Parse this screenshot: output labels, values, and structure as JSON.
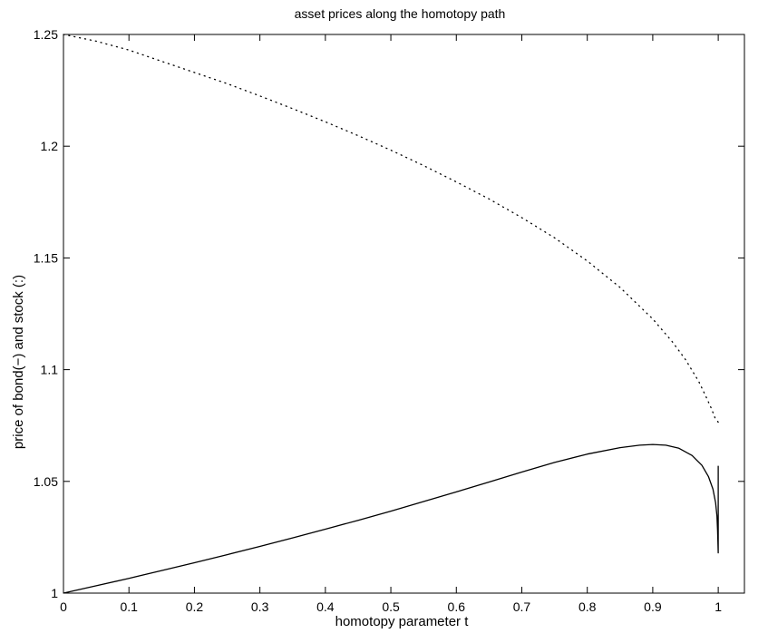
{
  "chart_data": {
    "type": "line",
    "title": "asset prices along the homotopy path",
    "xlabel": "homotopy parameter t",
    "ylabel": "price of bond(−) and stock (:)",
    "xlim": [
      0,
      1.04
    ],
    "ylim": [
      1,
      1.25
    ],
    "xticks": [
      0,
      0.1,
      0.2,
      0.3,
      0.4,
      0.5,
      0.6,
      0.7,
      0.8,
      0.9,
      1
    ],
    "xtick_labels": [
      "0",
      "0.1",
      "0.2",
      "0.3",
      "0.4",
      "0.5",
      "0.6",
      "0.7",
      "0.8",
      "0.9",
      "1"
    ],
    "yticks": [
      1,
      1.05,
      1.1,
      1.15,
      1.2,
      1.25
    ],
    "ytick_labels": [
      "1",
      "1.05",
      "1.1",
      "1.15",
      "1.2",
      "1.25"
    ],
    "grid": false,
    "series": [
      {
        "style": "solid",
        "color": "#000000",
        "x": [
          0,
          0.05,
          0.1,
          0.15,
          0.2,
          0.25,
          0.3,
          0.35,
          0.4,
          0.45,
          0.5,
          0.55,
          0.6,
          0.65,
          0.7,
          0.75,
          0.8,
          0.85,
          0.88,
          0.9,
          0.92,
          0.94,
          0.96,
          0.975,
          0.985,
          0.992,
          0.996,
          0.998,
          0.999,
          1.0,
          1.0,
          1.0
        ],
        "y": [
          1.0,
          1.0033,
          1.0066,
          1.0101,
          1.0136,
          1.0172,
          1.0209,
          1.0247,
          1.0286,
          1.0326,
          1.0367,
          1.041,
          1.0453,
          1.0497,
          1.0542,
          1.0585,
          1.0622,
          1.0651,
          1.0662,
          1.0665,
          1.0662,
          1.0648,
          1.0616,
          1.0572,
          1.0522,
          1.0465,
          1.0405,
          1.0345,
          1.028,
          1.018,
          1.018,
          1.057
        ]
      },
      {
        "style": "dotted",
        "color": "#000000",
        "x": [
          0,
          0.05,
          0.1,
          0.15,
          0.2,
          0.25,
          0.3,
          0.35,
          0.4,
          0.45,
          0.5,
          0.55,
          0.6,
          0.65,
          0.7,
          0.75,
          0.8,
          0.85,
          0.9,
          0.93,
          0.95,
          0.97,
          0.98,
          0.99,
          0.995,
          1.0
        ],
        "y": [
          1.25,
          1.247,
          1.243,
          1.238,
          1.233,
          1.228,
          1.2225,
          1.2168,
          1.2109,
          1.2047,
          1.1982,
          1.1913,
          1.184,
          1.1764,
          1.168,
          1.159,
          1.1486,
          1.1368,
          1.1227,
          1.1124,
          1.1045,
          1.0948,
          1.0887,
          1.0823,
          1.0785,
          1.0765
        ]
      }
    ]
  }
}
